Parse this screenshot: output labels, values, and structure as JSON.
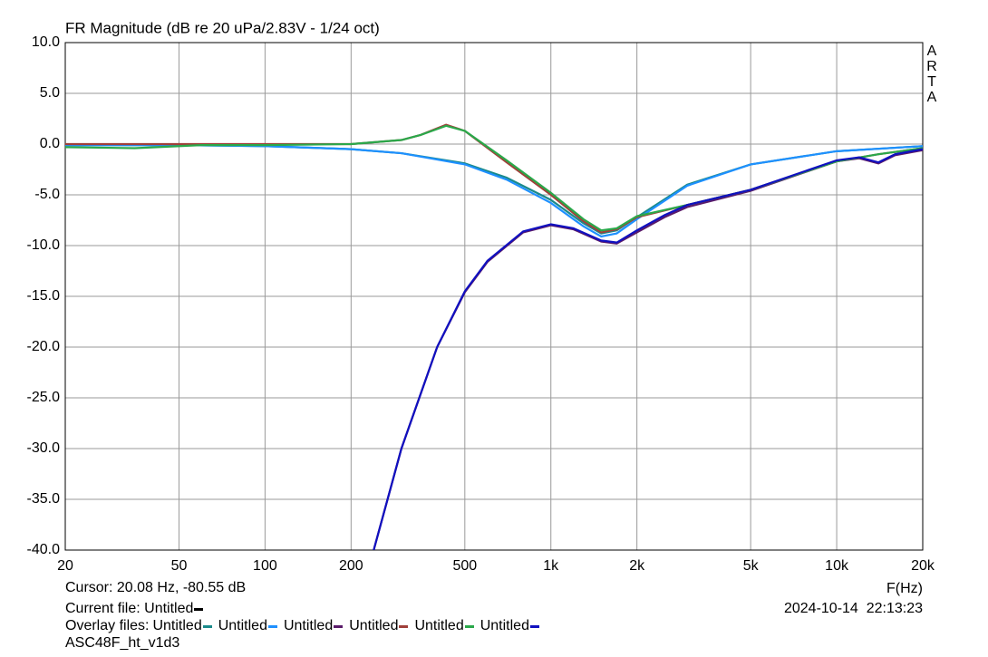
{
  "chart_data": {
    "type": "line",
    "title": "FR Magnitude (dB re 20 uPa/2.83V - 1/24 oct)",
    "xlabel": "F(Hz)",
    "side_label": "ARTA",
    "xscale": "log",
    "grid": true,
    "xlim": [
      20,
      20000
    ],
    "ylim": [
      -40,
      10
    ],
    "xticks": [
      20,
      50,
      100,
      200,
      500,
      {
        "value": 1000,
        "label": "1k"
      },
      {
        "value": 2000,
        "label": "2k"
      },
      {
        "value": 5000,
        "label": "5k"
      },
      {
        "value": 10000,
        "label": "10k"
      },
      {
        "value": 20000,
        "label": "20k"
      }
    ],
    "yticks": [
      {
        "value": 10,
        "label": "10.0"
      },
      {
        "value": 5,
        "label": "5.0"
      },
      {
        "value": 0,
        "label": "0.0"
      },
      {
        "value": -5,
        "label": "-5.0"
      },
      {
        "value": -10,
        "label": "-10.0"
      },
      {
        "value": -15,
        "label": "-15.0"
      },
      {
        "value": -20,
        "label": "-20.0"
      },
      {
        "value": -25,
        "label": "-25.0"
      },
      {
        "value": -30,
        "label": "-30.0"
      },
      {
        "value": -35,
        "label": "-35.0"
      },
      {
        "value": -40,
        "label": "-40.0"
      }
    ],
    "cursor": "Cursor: 20.08 Hz, -80.55 dB",
    "current_file": "Current file: Untitled",
    "current_color": "#000000",
    "timestamp": "2024-10-14  22:13:23",
    "overlay_label": "Overlay files:",
    "footer": "ASC48F_ht_v1d3",
    "series": [
      {
        "name": "Untitled",
        "color": "#1a8a8a",
        "x": [
          20,
          50,
          100,
          200,
          300,
          500,
          700,
          1000,
          1300,
          1500,
          1700,
          2000,
          3000,
          5000,
          10000,
          20000
        ],
        "values": [
          -0.1,
          -0.1,
          -0.2,
          -0.5,
          -0.9,
          -1.9,
          -3.3,
          -5.5,
          -7.8,
          -8.8,
          -8.5,
          -7.2,
          -4.0,
          -2.0,
          -0.7,
          -0.2
        ]
      },
      {
        "name": "Untitled",
        "color": "#1e90ff",
        "x": [
          20,
          50,
          100,
          200,
          300,
          500,
          700,
          1000,
          1300,
          1500,
          1700,
          2000,
          3000,
          5000,
          10000,
          20000
        ],
        "values": [
          -0.1,
          -0.1,
          -0.2,
          -0.5,
          -0.9,
          -2.0,
          -3.5,
          -5.8,
          -8.1,
          -9.1,
          -8.8,
          -7.4,
          -4.1,
          -2.0,
          -0.7,
          -0.2
        ]
      },
      {
        "name": "Untitled",
        "color": "#5a1a6a",
        "x": [
          240,
          300,
          400,
          500,
          600,
          800,
          1000,
          1200,
          1500,
          1700,
          2000,
          2500,
          3000,
          5000,
          10000,
          12000,
          14000,
          16000,
          20000
        ],
        "values": [
          -40,
          -30,
          -20,
          -14.6,
          -11.6,
          -8.7,
          -8.0,
          -8.4,
          -9.6,
          -9.8,
          -8.7,
          -7.2,
          -6.2,
          -4.6,
          -1.7,
          -1.4,
          -1.9,
          -1.1,
          -0.6
        ]
      },
      {
        "name": "Untitled",
        "color": "#a0403a",
        "x": [
          20,
          100,
          200,
          300,
          350,
          430,
          500,
          700,
          1000,
          1300,
          1500,
          1700,
          2000,
          3000,
          5000,
          10000,
          14000,
          20000
        ],
        "values": [
          0,
          0,
          0,
          0.4,
          0.9,
          1.9,
          1.3,
          -1.8,
          -5.0,
          -7.6,
          -8.7,
          -8.4,
          -7.2,
          -6.0,
          -4.5,
          -1.7,
          -1.0,
          -0.4
        ]
      },
      {
        "name": "Untitled",
        "color": "#2aa84a",
        "x": [
          20,
          35,
          60,
          100,
          200,
          300,
          350,
          430,
          500,
          700,
          1000,
          1300,
          1500,
          1700,
          2000,
          3000,
          5000,
          10000,
          14000,
          20000
        ],
        "values": [
          -0.3,
          -0.4,
          -0.1,
          -0.1,
          0,
          0.4,
          0.9,
          1.8,
          1.3,
          -1.6,
          -4.8,
          -7.4,
          -8.5,
          -8.3,
          -7.1,
          -6.0,
          -4.5,
          -1.7,
          -1.0,
          -0.4
        ]
      },
      {
        "name": "Untitled",
        "color": "#1010c0",
        "x": [
          240,
          300,
          400,
          500,
          600,
          800,
          1000,
          1200,
          1500,
          1700,
          2000,
          2500,
          3000,
          5000,
          10000,
          12000,
          14000,
          16000,
          20000
        ],
        "values": [
          -40,
          -30,
          -20,
          -14.5,
          -11.5,
          -8.6,
          -7.9,
          -8.3,
          -9.5,
          -9.7,
          -8.5,
          -7,
          -6,
          -4.5,
          -1.6,
          -1.3,
          -1.8,
          -1.0,
          -0.5
        ]
      }
    ]
  }
}
